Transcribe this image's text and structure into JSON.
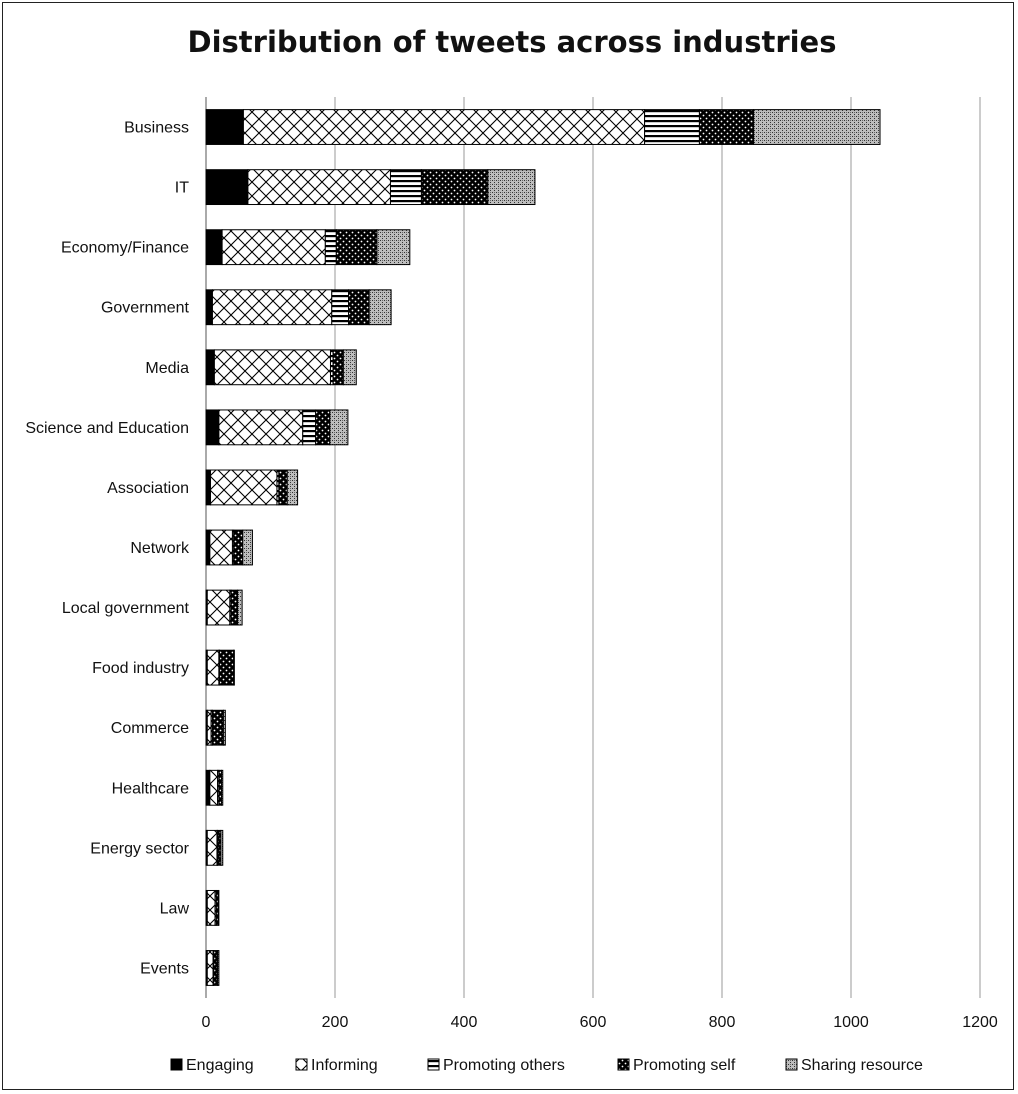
{
  "chart_data": {
    "type": "bar",
    "orientation": "horizontal",
    "stacked": true,
    "title": "Distribution of tweets across industries",
    "xlabel": "",
    "ylabel": "",
    "xlim": [
      0,
      1200
    ],
    "x_ticks": [
      0,
      200,
      400,
      600,
      800,
      1000,
      1200
    ],
    "grid": "vertical",
    "legend_position": "bottom",
    "categories": [
      "Business",
      "IT",
      "Economy/Finance",
      "Government",
      "Media",
      "Science and Education",
      "Association",
      "Network",
      "Local government",
      "Food industry",
      "Commerce",
      "Healthcare",
      "Energy sector",
      "Law",
      "Events"
    ],
    "series": [
      {
        "name": "Engaging",
        "pattern": "solid-black",
        "values": [
          58,
          65,
          25,
          10,
          13,
          20,
          7,
          6,
          2,
          2,
          2,
          6,
          2,
          2,
          2
        ]
      },
      {
        "name": "Informing",
        "pattern": "crosshatch",
        "values": [
          622,
          221,
          160,
          185,
          180,
          130,
          103,
          35,
          35,
          18,
          6,
          12,
          15,
          12,
          9
        ]
      },
      {
        "name": "Promoting others",
        "pattern": "horizontal-stripes",
        "values": [
          85,
          48,
          17,
          26,
          4,
          20,
          3,
          2,
          2,
          1,
          2,
          2,
          1,
          2,
          1
        ]
      },
      {
        "name": "Promoting self",
        "pattern": "dark-dots",
        "values": [
          84,
          103,
          63,
          32,
          16,
          22,
          13,
          14,
          10,
          22,
          17,
          4,
          5,
          3,
          6
        ]
      },
      {
        "name": "Sharing resource",
        "pattern": "stipple-gray",
        "values": [
          196,
          73,
          51,
          34,
          20,
          28,
          16,
          15,
          7,
          1,
          3,
          2,
          3,
          1,
          2
        ]
      }
    ]
  }
}
